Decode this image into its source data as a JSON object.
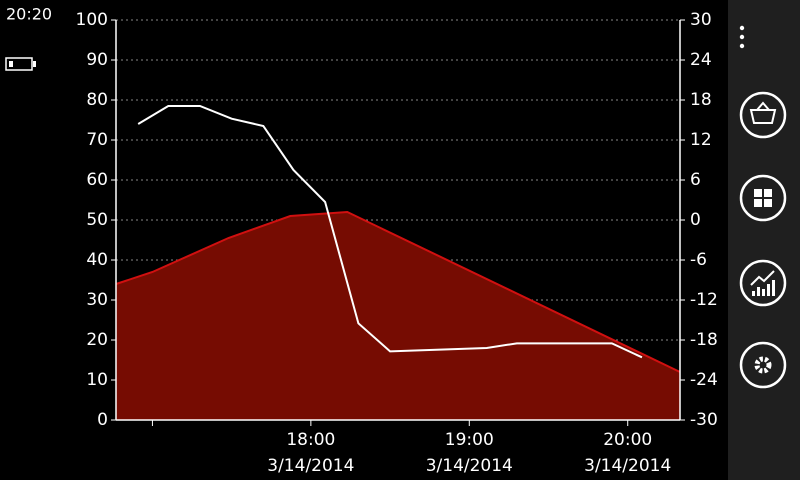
{
  "status_bar": {
    "time": "20:20"
  },
  "chart_data": {
    "type": "line",
    "xlim": [
      16.77,
      20.33
    ],
    "xticks": [
      {
        "value": 17
      },
      {
        "value": 18,
        "label": "18:00",
        "date": "3/14/2014"
      },
      {
        "value": 19,
        "label": "19:00",
        "date": "3/14/2014"
      },
      {
        "value": 20,
        "label": "20:00",
        "date": "3/14/2014"
      }
    ],
    "ylim": [
      0,
      100
    ],
    "yticks": [
      0,
      10,
      20,
      30,
      40,
      50,
      60,
      70,
      80,
      90,
      100
    ],
    "y2lim": [
      -30,
      30
    ],
    "y2ticks": [
      -30,
      -24,
      -18,
      -12,
      -6,
      0,
      6,
      12,
      18,
      24,
      30
    ],
    "grid": true,
    "series": [
      {
        "type": "area",
        "color": "#d01010",
        "fill": "#760c02",
        "x": [
          16.77,
          17.0,
          17.48,
          17.87,
          18.23,
          20.33
        ],
        "values": [
          34,
          37,
          45.5,
          51,
          52,
          12
        ]
      },
      {
        "type": "line",
        "axis": "y2",
        "color": "#ffffff",
        "x": [
          16.91,
          17.1,
          17.3,
          17.5,
          17.7,
          17.89,
          18.09,
          18.3,
          18.5,
          19.11,
          19.3,
          19.9,
          20.09
        ],
        "values": [
          14.4,
          17.1,
          17.1,
          15.2,
          14.1,
          7.5,
          2.7,
          -15.5,
          -19.7,
          -19.2,
          -18.5,
          -18.5,
          -20.6
        ]
      }
    ]
  }
}
